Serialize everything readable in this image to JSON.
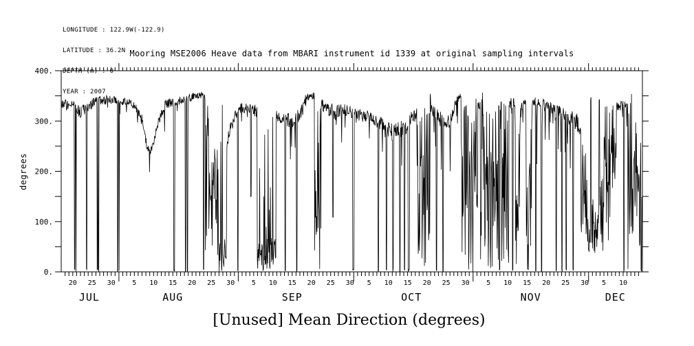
{
  "title": "Mooring MSE2006 Heave data from MBARI instrument id 1339 at original sampling intervals",
  "caption": "[Unused] Mean Direction (degrees)",
  "metadata": [
    "LONGITUDE : 122.9W(-122.9)",
    "LATITUDE : 36.2N",
    "DEPTH (m) : 0",
    "YEAR : 2007"
  ],
  "colors": {
    "ink": "#000000",
    "background": "#ffffff"
  },
  "chart_data": {
    "type": "line",
    "title": "Mooring MSE2006 Heave data from MBARI instrument id 1339 at original sampling intervals",
    "xlabel": "[Unused] Mean Direction (degrees)",
    "ylabel": "degrees",
    "ylim": [
      0,
      400
    ],
    "grid": false,
    "legend": "none",
    "y_ticks": [
      [
        0,
        "0."
      ],
      [
        100,
        "100."
      ],
      [
        200,
        "200."
      ],
      [
        300,
        "300."
      ],
      [
        400,
        "400."
      ]
    ],
    "y_minor_step": 50,
    "x_axis": {
      "days_total": 151,
      "start_label": "JUL 17 (year 2007)",
      "minor_tick_interval_days": 1,
      "month_start_days": [
        15,
        46,
        76,
        107,
        137
      ],
      "label_ticks": [
        [
          3,
          "20"
        ],
        [
          8,
          "25"
        ],
        [
          13,
          "30"
        ],
        [
          19,
          "5"
        ],
        [
          24,
          "10"
        ],
        [
          29,
          "15"
        ],
        [
          34,
          "20"
        ],
        [
          39,
          "25"
        ],
        [
          44,
          "30"
        ],
        [
          50,
          "5"
        ],
        [
          55,
          "10"
        ],
        [
          60,
          "15"
        ],
        [
          65,
          "20"
        ],
        [
          70,
          "25"
        ],
        [
          75,
          "30"
        ],
        [
          80,
          "5"
        ],
        [
          85,
          "10"
        ],
        [
          90,
          "15"
        ],
        [
          95,
          "20"
        ],
        [
          100,
          "25"
        ],
        [
          105,
          "30"
        ],
        [
          111,
          "5"
        ],
        [
          116,
          "10"
        ],
        [
          121,
          "15"
        ],
        [
          126,
          "20"
        ],
        [
          131,
          "25"
        ],
        [
          136,
          "30"
        ],
        [
          141,
          "5"
        ],
        [
          146,
          "10"
        ]
      ],
      "month_labels": [
        [
          7.3,
          "JUL"
        ],
        [
          29,
          "AUG"
        ],
        [
          60,
          "SEP"
        ],
        [
          91,
          "OCT"
        ],
        [
          122,
          "NOV"
        ],
        [
          144,
          "DEC"
        ]
      ]
    },
    "series": {
      "name": "Mean Direction (degrees) at original sampling intervals",
      "seed": 9,
      "sample_step_days": 0.1,
      "baseline_keyframes": [
        [
          0,
          336,
          12
        ],
        [
          3,
          328,
          13
        ],
        [
          5,
          318,
          12
        ],
        [
          7,
          327,
          11
        ],
        [
          9,
          341,
          9
        ],
        [
          13,
          342,
          9
        ],
        [
          16,
          338,
          9
        ],
        [
          19,
          331,
          10
        ],
        [
          21,
          300,
          12
        ],
        [
          22.3,
          248,
          9
        ],
        [
          23.5,
          240,
          8
        ],
        [
          25,
          292,
          10
        ],
        [
          27,
          333,
          9
        ],
        [
          31,
          341,
          8
        ],
        [
          34,
          348,
          8
        ],
        [
          36.5,
          352,
          7
        ],
        [
          37.3,
          350,
          7
        ],
        [
          43,
          257,
          14
        ],
        [
          44.5,
          302,
          10
        ],
        [
          46,
          322,
          10
        ],
        [
          48,
          328,
          12
        ],
        [
          51,
          318,
          12
        ],
        [
          56,
          310,
          12
        ],
        [
          58,
          306,
          14
        ],
        [
          60,
          298,
          17
        ],
        [
          62,
          312,
          14
        ],
        [
          63.5,
          346,
          7
        ],
        [
          65.5,
          351,
          7
        ],
        [
          67.8,
          332,
          12
        ],
        [
          71,
          318,
          14
        ],
        [
          74,
          323,
          12
        ],
        [
          77,
          313,
          12
        ],
        [
          80,
          307,
          13
        ],
        [
          83,
          293,
          15
        ],
        [
          86,
          279,
          17
        ],
        [
          89,
          287,
          19
        ],
        [
          92,
          312,
          14
        ],
        [
          96.3,
          323,
          14
        ],
        [
          99,
          301,
          17
        ],
        [
          101,
          296,
          14
        ],
        [
          102.5,
          340,
          9
        ],
        [
          103.8,
          351,
          7
        ],
        [
          108.5,
          331,
          9
        ],
        [
          113.8,
          331,
          11
        ],
        [
          117,
          336,
          11
        ],
        [
          120,
          331,
          11
        ],
        [
          123,
          338,
          9
        ],
        [
          126,
          333,
          11
        ],
        [
          128,
          321,
          14
        ],
        [
          131,
          313,
          14
        ],
        [
          133.5,
          306,
          16
        ],
        [
          134.9,
          282,
          18
        ],
        [
          144.3,
          326,
          11
        ],
        [
          146,
          333,
          9
        ],
        [
          147.1,
          331,
          11
        ],
        [
          151,
          330,
          11
        ]
      ],
      "chaos_regions": [
        [
          37.35,
          39.3,
          0,
          358,
          "uniform"
        ],
        [
          39.3,
          40.6,
          70,
          260,
          "uniform"
        ],
        [
          40.6,
          43.0,
          0,
          340,
          "low"
        ],
        [
          50.9,
          55.8,
          2,
          330,
          "low"
        ],
        [
          65.8,
          67.5,
          0,
          356,
          "uniform"
        ],
        [
          92.4,
          96.0,
          0,
          356,
          "uniform"
        ],
        [
          103.9,
          108.2,
          0,
          358,
          "uniform"
        ],
        [
          108.9,
          113.6,
          0,
          358,
          "uniform"
        ],
        [
          114.4,
          116.3,
          0,
          352,
          "uniform"
        ],
        [
          117.9,
          119.3,
          0,
          352,
          "uniform"
        ],
        [
          120.7,
          122.3,
          0,
          352,
          "uniform"
        ],
        [
          135.0,
          136.6,
          60,
          270,
          "uniform"
        ],
        [
          136.6,
          138.2,
          20,
          150,
          "uniform"
        ],
        [
          138.2,
          139.6,
          25,
          120,
          "uniform"
        ],
        [
          139.6,
          140.9,
          40,
          200,
          "uniform"
        ],
        [
          140.9,
          142.6,
          60,
          335,
          "uniform"
        ],
        [
          142.6,
          144.2,
          145,
          345,
          "uniform"
        ],
        [
          147.2,
          150.85,
          0,
          356,
          "uniform"
        ]
      ],
      "dropout_events": [
        [
          3.5,
          3,
          0.14
        ],
        [
          3.85,
          3,
          0.14
        ],
        [
          6.6,
          3,
          0.12
        ],
        [
          9.4,
          3,
          0.16
        ],
        [
          9.7,
          3,
          0.16
        ],
        [
          14.7,
          3,
          0.14
        ],
        [
          15.05,
          3,
          0.14
        ],
        [
          29.4,
          3,
          0.3
        ],
        [
          32.3,
          3,
          0.14
        ],
        [
          32.8,
          3,
          0.14
        ],
        [
          37.0,
          3,
          0.14
        ],
        [
          45.9,
          3,
          0.25
        ],
        [
          49.3,
          150,
          0.12
        ],
        [
          58.2,
          3,
          0.2
        ],
        [
          61.2,
          3,
          0.14
        ],
        [
          70.6,
          110,
          0.12
        ],
        [
          75.9,
          3,
          0.35
        ],
        [
          82.4,
          3,
          0.12
        ],
        [
          84.5,
          3,
          0.14
        ],
        [
          86.2,
          3,
          0.14
        ],
        [
          88.0,
          3,
          0.14
        ],
        [
          89.2,
          3,
          0.14
        ],
        [
          90.3,
          3,
          0.45
        ],
        [
          97.5,
          3,
          0.14
        ],
        [
          99.2,
          3,
          0.14
        ],
        [
          113.9,
          3,
          0.14
        ],
        [
          117.3,
          3,
          0.12
        ],
        [
          123.3,
          3,
          0.14
        ],
        [
          124.8,
          3,
          0.14
        ],
        [
          128.6,
          3,
          0.14
        ],
        [
          130.1,
          3,
          0.14
        ],
        [
          131.2,
          3,
          0.12
        ],
        [
          133.0,
          3,
          0.14
        ],
        [
          137.6,
          345,
          0.12
        ],
        [
          139.8,
          340,
          0.12
        ],
        [
          146.2,
          3,
          0.14
        ],
        [
          150.7,
          3,
          0.14
        ]
      ],
      "downspike_regions": [
        [
          16,
          19,
          0.05,
          60
        ],
        [
          46,
          52,
          0.08,
          100
        ],
        [
          58,
          63,
          0.12,
          120
        ],
        [
          68,
          75,
          0.1,
          90
        ],
        [
          83,
          92,
          0.18,
          140
        ],
        [
          96,
          103,
          0.15,
          120
        ],
        [
          111,
          135,
          0.22,
          170
        ],
        [
          144,
          147,
          0.12,
          110
        ]
      ],
      "downspike_default": [
        0,
        151,
        0.05,
        80
      ]
    }
  }
}
